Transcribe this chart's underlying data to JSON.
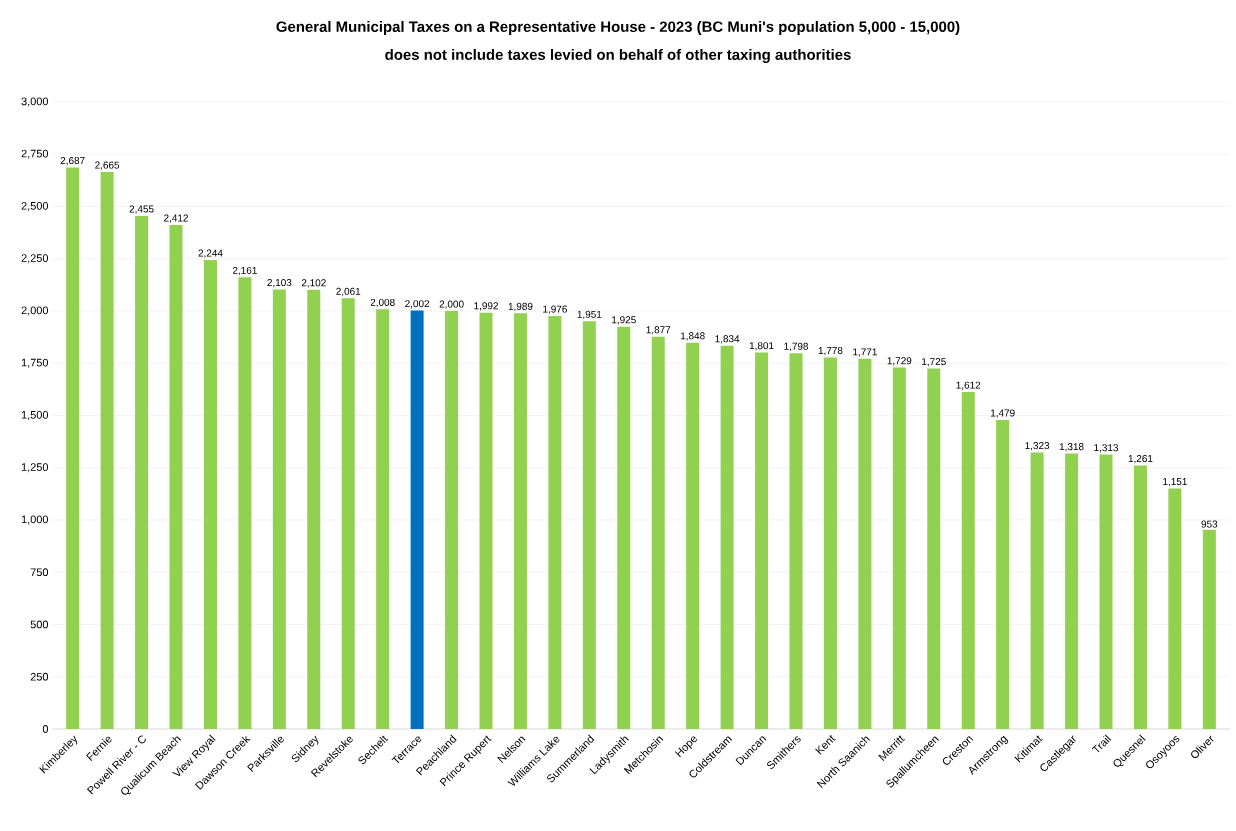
{
  "chart_data": {
    "type": "bar",
    "title": "General Municipal Taxes on a Representative House - 2023 (BC Muni's population 5,000 - 15,000)",
    "subtitle": "does not include taxes levied on behalf of other taxing authorities",
    "categories": [
      "Kimberley",
      "Fernie",
      "Powell River - C",
      "Qualicum Beach",
      "View Royal",
      "Dawson Creek",
      "Parksville",
      "Sidney",
      "Revelstoke",
      "Sechelt",
      "Terrace",
      "Peachland",
      "Prince Rupert",
      "Nelson",
      "Williams Lake",
      "Summerland",
      "Ladysmith",
      "Metchosin",
      "Hope",
      "Coldstream",
      "Duncan",
      "Smithers",
      "Kent",
      "North Saanich",
      "Merritt",
      "Spallumcheen",
      "Creston",
      "Armstrong",
      "Kitimat",
      "Castlegar",
      "Trail",
      "Quesnel",
      "Osoyoos",
      "Oliver"
    ],
    "values": [
      2687,
      2665,
      2455,
      2412,
      2244,
      2161,
      2103,
      2102,
      2061,
      2008,
      2002,
      2000,
      1992,
      1989,
      1976,
      1951,
      1925,
      1877,
      1848,
      1834,
      1801,
      1798,
      1778,
      1771,
      1729,
      1725,
      1612,
      1479,
      1323,
      1318,
      1313,
      1261,
      1151,
      953
    ],
    "value_labels": [
      "2,687",
      "2,665",
      "2,455",
      "2,412",
      "2,244",
      "2,161",
      "2,103",
      "2,102",
      "2,061",
      "2,008",
      "2,002",
      "2,000",
      "1,992",
      "1,989",
      "1,976",
      "1,951",
      "1,925",
      "1,877",
      "1,848",
      "1,834",
      "1,801",
      "1,798",
      "1,778",
      "1,771",
      "1,729",
      "1,725",
      "1,612",
      "1,479",
      "1,323",
      "1,318",
      "1,313",
      "1,261",
      "1,151",
      "953"
    ],
    "colors": [
      "#92d050",
      "#92d050",
      "#92d050",
      "#92d050",
      "#92d050",
      "#92d050",
      "#92d050",
      "#92d050",
      "#92d050",
      "#92d050",
      "#0070c0",
      "#92d050",
      "#92d050",
      "#92d050",
      "#92d050",
      "#92d050",
      "#92d050",
      "#92d050",
      "#92d050",
      "#92d050",
      "#92d050",
      "#92d050",
      "#92d050",
      "#92d050",
      "#92d050",
      "#92d050",
      "#92d050",
      "#92d050",
      "#92d050",
      "#92d050",
      "#92d050",
      "#92d050",
      "#92d050",
      "#92d050"
    ],
    "ylim": [
      0,
      3000
    ],
    "yticks": [
      0,
      250,
      500,
      750,
      {
        "value": 1000,
        "label": "1,000"
      },
      {
        "value": 1250,
        "label": "1,250"
      },
      {
        "value": 1500,
        "label": "1,500"
      },
      {
        "value": 1750,
        "label": "1,750"
      },
      {
        "value": 2000,
        "label": "2,000"
      },
      {
        "value": 2250,
        "label": "2,250"
      },
      {
        "value": 2500,
        "label": "2,500"
      },
      {
        "value": 2750,
        "label": "2,750"
      },
      {
        "value": 3000,
        "label": "3,000"
      }
    ],
    "grid": "y"
  }
}
